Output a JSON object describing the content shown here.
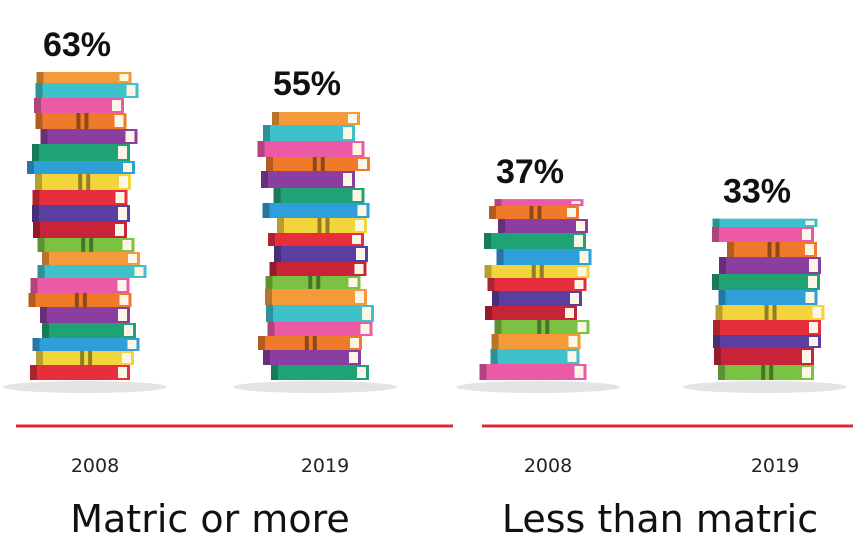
{
  "chart_data": {
    "type": "bar",
    "title": "",
    "xlabel": "",
    "ylabel": "",
    "ylim": [
      0,
      63
    ],
    "groups": [
      {
        "label": "Matric or more",
        "bars": [
          {
            "year": "2008",
            "value": 63,
            "label": "63%"
          },
          {
            "year": "2019",
            "value": 55,
            "label": "55%"
          }
        ]
      },
      {
        "label": "Less than matric",
        "bars": [
          {
            "year": "2008",
            "value": 37,
            "label": "37%"
          },
          {
            "year": "2019",
            "value": 33,
            "label": "33%"
          }
        ]
      }
    ],
    "colors": {
      "baseline": "#d8283a",
      "book_palette": [
        "#e62e3c",
        "#f4d43c",
        "#2e9fd8",
        "#20a374",
        "#8a3fa0",
        "#ee7a2a",
        "#ec5aa6",
        "#3ec1c9",
        "#f49a3a",
        "#7cc242",
        "#c7243a",
        "#5b3fa0"
      ]
    }
  }
}
